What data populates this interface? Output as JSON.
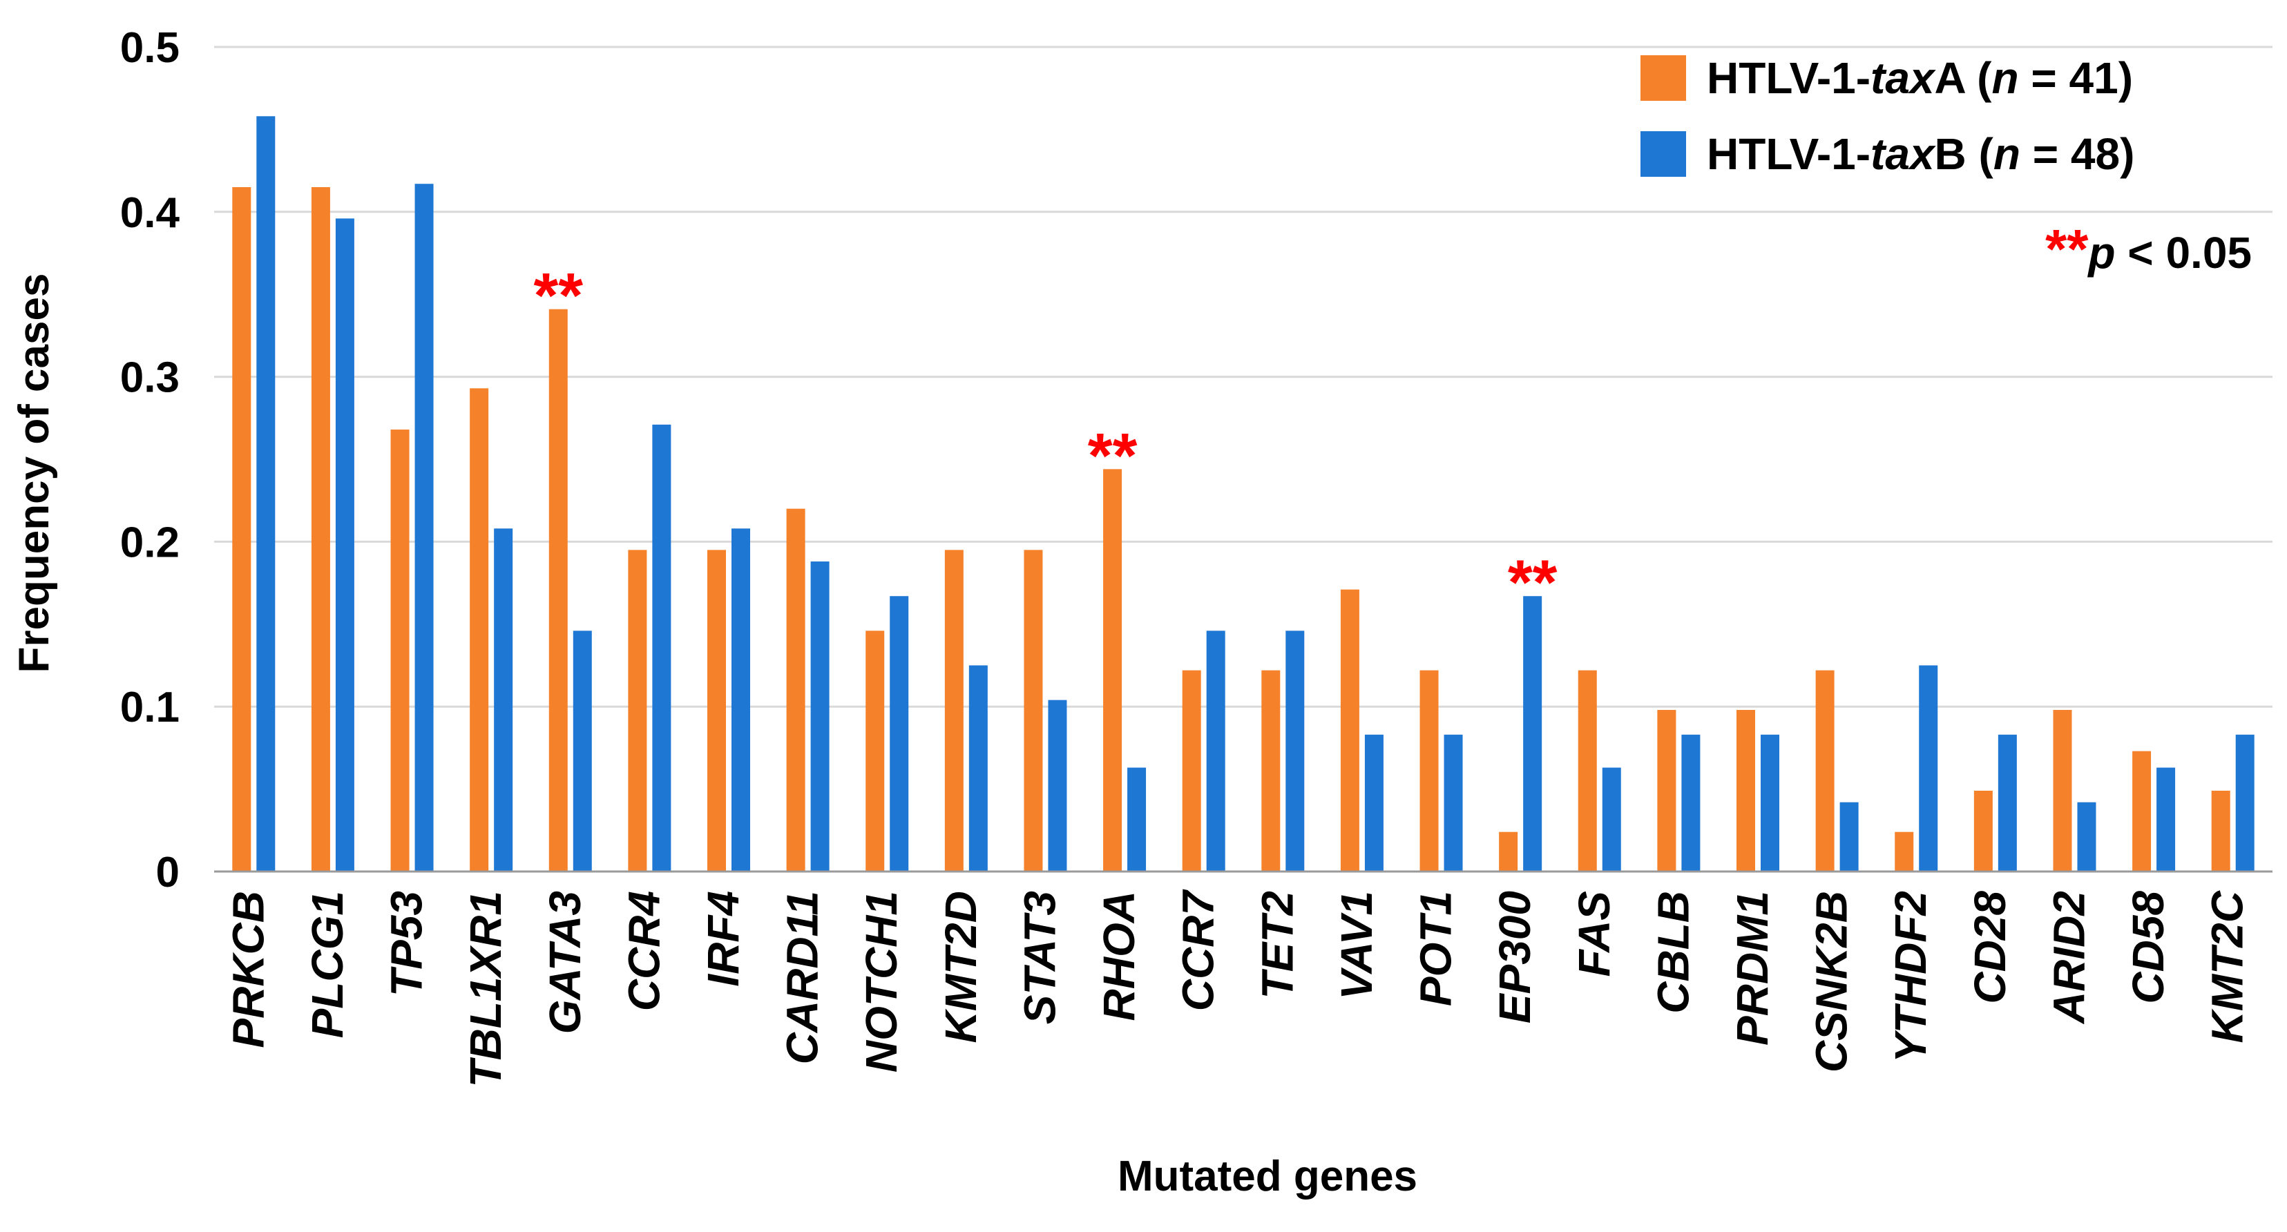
{
  "chart_data": {
    "type": "bar",
    "title": "",
    "xlabel": "Mutated genes",
    "ylabel": "Frequency of cases",
    "ylim": [
      0,
      0.5
    ],
    "yticks": [
      0,
      0.1,
      0.2,
      0.3,
      0.4,
      0.5
    ],
    "ytick_labels": [
      "0",
      "0.1",
      "0.2",
      "0.3",
      "0.4",
      "0.5"
    ],
    "grid": true,
    "legend_position": "top-right",
    "categories": [
      "PRKCB",
      "PLCG1",
      "TP53",
      "TBL1XR1",
      "GATA3",
      "CCR4",
      "IRF4",
      "CARD11",
      "NOTCH1",
      "KMT2D",
      "STAT3",
      "RHOA",
      "CCR7",
      "TET2",
      "VAV1",
      "POT1",
      "EP300",
      "FAS",
      "CBLB",
      "PRDM1",
      "CSNK2B",
      "YTHDF2",
      "CD28",
      "ARID2",
      "CD58",
      "KMT2C"
    ],
    "series": [
      {
        "name": "HTLV-1-taxA (n = 41)",
        "legend": {
          "prefix": "HTLV-1-",
          "italic": "tax",
          "suffix": "A (",
          "n_italic": "n",
          "n_value": " = 41)"
        },
        "color": "#F5822A",
        "values": [
          0.415,
          0.415,
          0.268,
          0.293,
          0.341,
          0.195,
          0.195,
          0.22,
          0.146,
          0.195,
          0.195,
          0.244,
          0.122,
          0.122,
          0.171,
          0.122,
          0.024,
          0.122,
          0.098,
          0.098,
          0.122,
          0.024,
          0.049,
          0.098,
          0.073,
          0.049
        ]
      },
      {
        "name": "HTLV-1-taxB (n = 48)",
        "legend": {
          "prefix": "HTLV-1-",
          "italic": "tax",
          "suffix": "B (",
          "n_italic": "n",
          "n_value": " = 48)"
        },
        "color": "#1F77D4",
        "values": [
          0.458,
          0.396,
          0.417,
          0.208,
          0.146,
          0.271,
          0.208,
          0.188,
          0.167,
          0.125,
          0.104,
          0.063,
          0.146,
          0.146,
          0.083,
          0.083,
          0.167,
          0.063,
          0.083,
          0.083,
          0.042,
          0.125,
          0.083,
          0.042,
          0.063,
          0.083
        ]
      }
    ],
    "annotations": [
      {
        "category": "GATA3",
        "series": 0,
        "text": "**"
      },
      {
        "category": "RHOA",
        "series": 0,
        "text": "**"
      },
      {
        "category": "EP300",
        "series": 1,
        "text": "**"
      }
    ],
    "significance_note": {
      "stars": "**",
      "p_italic": "p",
      "rest": " < 0.05"
    },
    "colors": {
      "annotation": "#FF0000",
      "grid": "#D9D9D9",
      "axis": "#000000"
    }
  }
}
